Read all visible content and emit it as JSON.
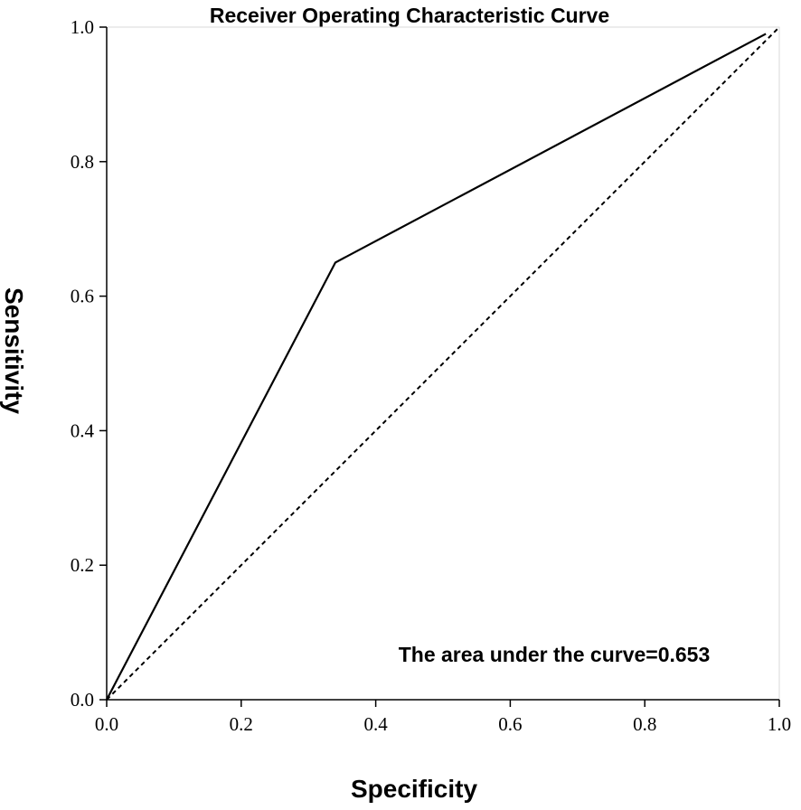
{
  "chart_data": {
    "type": "line",
    "title": "Receiver Operating Characteristic Curve",
    "xlabel": "Specificity",
    "ylabel": "Sensitivity",
    "xlim": [
      0.0,
      1.0
    ],
    "ylim": [
      0.0,
      1.0
    ],
    "x_ticks": [
      "0.0",
      "0.2",
      "0.4",
      "0.6",
      "0.8",
      "1.0"
    ],
    "y_ticks": [
      "0.0",
      "0.2",
      "0.4",
      "0.6",
      "0.8",
      "1.0"
    ],
    "grid": false,
    "series": [
      {
        "style": "solid",
        "x": [
          0.0,
          0.34,
          0.98
        ],
        "y": [
          0.0,
          0.65,
          0.99
        ]
      },
      {
        "style": "dashed",
        "x": [
          0.0,
          1.0
        ],
        "y": [
          0.0,
          1.0
        ]
      }
    ],
    "annotation": "The area under the curve=0.653"
  }
}
